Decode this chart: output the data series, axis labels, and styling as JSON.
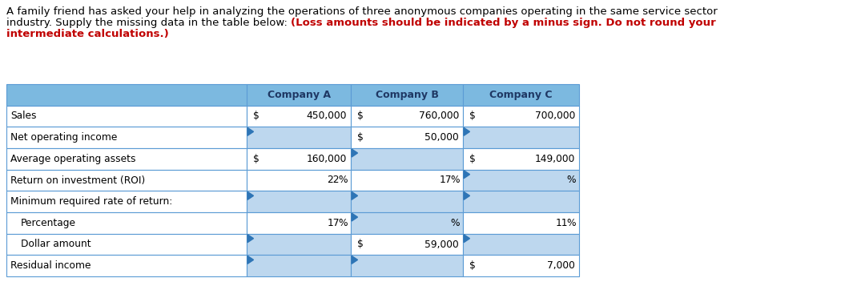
{
  "header_bg": "#7CB9E0",
  "blank_cell_bg": "#BDD7EE",
  "grid_color": "#5B9BD5",
  "header_text_color": "#1F3864",
  "title_black": "A family friend has asked your help in analyzing the operations of three anonymous companies operating in the same service sector\nindustry. Supply the missing data in the table below: ",
  "title_red_bold": "(Loss amounts should be indicated by a minus sign. Do not round your\nintermediate calculations.)",
  "header_labels": [
    "",
    "Company A",
    "Company B",
    "Company C"
  ],
  "row_labels": [
    "Sales",
    "Net operating income",
    "Average operating assets",
    "Return on investment (ROI)",
    "Minimum required rate of return:",
    "Percentage",
    "Dollar amount",
    "Residual income"
  ],
  "row_label_indent": [
    0,
    0,
    0,
    0,
    0,
    1,
    1,
    0
  ],
  "col_a_cells": [
    {
      "dollar": "$",
      "value": "450,000",
      "pct": ""
    },
    {
      "dollar": "",
      "value": "",
      "pct": ""
    },
    {
      "dollar": "$",
      "value": "160,000",
      "pct": ""
    },
    {
      "dollar": "",
      "value": "22",
      "pct": "%"
    },
    {
      "dollar": "",
      "value": "",
      "pct": ""
    },
    {
      "dollar": "",
      "value": "17",
      "pct": "%"
    },
    {
      "dollar": "",
      "value": "",
      "pct": ""
    },
    {
      "dollar": "",
      "value": "",
      "pct": ""
    }
  ],
  "col_b_cells": [
    {
      "dollar": "$",
      "value": "760,000",
      "pct": ""
    },
    {
      "dollar": "$",
      "value": "50,000",
      "pct": ""
    },
    {
      "dollar": "",
      "value": "",
      "pct": ""
    },
    {
      "dollar": "",
      "value": "17",
      "pct": "%"
    },
    {
      "dollar": "",
      "value": "",
      "pct": ""
    },
    {
      "dollar": "",
      "value": "",
      "pct": "%"
    },
    {
      "dollar": "$",
      "value": "59,000",
      "pct": ""
    },
    {
      "dollar": "",
      "value": "",
      "pct": ""
    }
  ],
  "col_c_cells": [
    {
      "dollar": "$",
      "value": "700,000",
      "pct": ""
    },
    {
      "dollar": "",
      "value": "",
      "pct": ""
    },
    {
      "dollar": "$",
      "value": "149,000",
      "pct": ""
    },
    {
      "dollar": "",
      "value": "",
      "pct": "%"
    },
    {
      "dollar": "",
      "value": "",
      "pct": ""
    },
    {
      "dollar": "",
      "value": "11",
      "pct": "%"
    },
    {
      "dollar": "",
      "value": "",
      "pct": ""
    },
    {
      "dollar": "$",
      "value": "7,000",
      "pct": ""
    }
  ],
  "blank_a": [
    1,
    4,
    6,
    7
  ],
  "blank_b": [
    2,
    4,
    5,
    7
  ],
  "blank_c": [
    1,
    3,
    4,
    6
  ],
  "fig_width": 10.65,
  "fig_height": 3.57,
  "dpi": 100
}
